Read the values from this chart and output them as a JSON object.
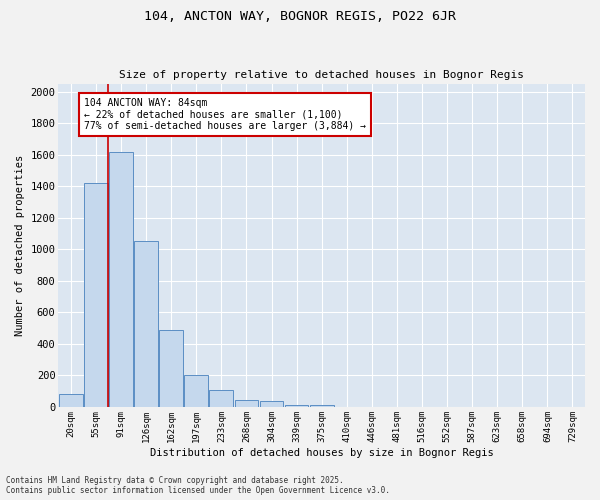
{
  "title1": "104, ANCTON WAY, BOGNOR REGIS, PO22 6JR",
  "title2": "Size of property relative to detached houses in Bognor Regis",
  "xlabel": "Distribution of detached houses by size in Bognor Regis",
  "ylabel": "Number of detached properties",
  "footnote1": "Contains HM Land Registry data © Crown copyright and database right 2025.",
  "footnote2": "Contains public sector information licensed under the Open Government Licence v3.0.",
  "bar_color": "#c5d8ed",
  "bar_edge_color": "#5b8ec4",
  "background_color": "#dce6f1",
  "fig_background_color": "#f2f2f2",
  "grid_color": "#ffffff",
  "annotation_text": "104 ANCTON WAY: 84sqm\n← 22% of detached houses are smaller (1,100)\n77% of semi-detached houses are larger (3,884) →",
  "annotation_box_edgecolor": "#cc0000",
  "property_line_color": "#cc0000",
  "property_line_bin": 2,
  "categories": [
    "20sqm",
    "55sqm",
    "91sqm",
    "126sqm",
    "162sqm",
    "197sqm",
    "233sqm",
    "268sqm",
    "304sqm",
    "339sqm",
    "375sqm",
    "410sqm",
    "446sqm",
    "481sqm",
    "516sqm",
    "552sqm",
    "587sqm",
    "623sqm",
    "658sqm",
    "694sqm",
    "729sqm"
  ],
  "values": [
    80,
    1420,
    1620,
    1055,
    490,
    200,
    110,
    45,
    35,
    15,
    10,
    0,
    0,
    0,
    0,
    0,
    0,
    0,
    0,
    0,
    0
  ],
  "ylim": [
    0,
    2050
  ],
  "yticks": [
    0,
    200,
    400,
    600,
    800,
    1000,
    1200,
    1400,
    1600,
    1800,
    2000
  ]
}
